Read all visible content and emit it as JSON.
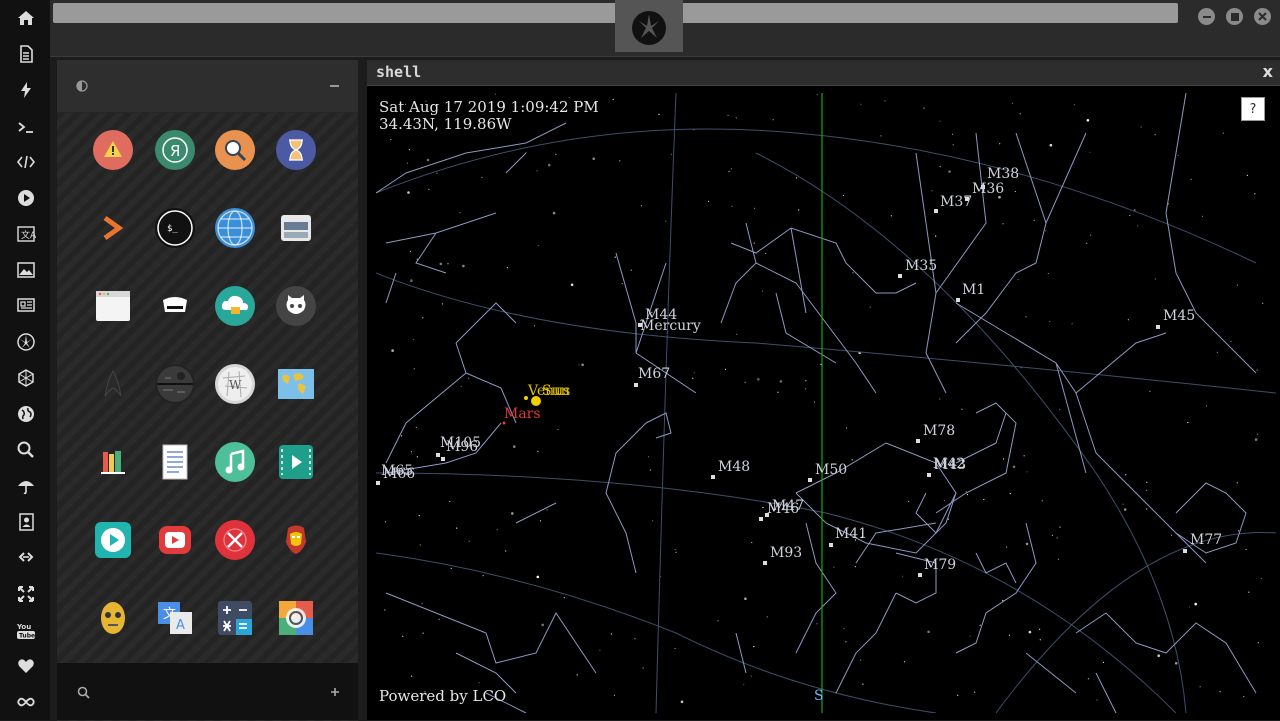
{
  "dock": {
    "items": [
      "home-icon",
      "document-icon",
      "bolt-icon",
      "terminal-icon",
      "code-icon",
      "play-icon",
      "translate-icon",
      "image-icon",
      "newspaper-icon",
      "rebel-icon",
      "hexagon-icon",
      "globe-icon",
      "search-icon",
      "umbrella-icon",
      "contact-icon",
      "link-icon",
      "expand-icon",
      "youtube-icon",
      "heart-icon",
      "infinity-icon"
    ]
  },
  "topbar": {
    "logo": "rebel-alliance-logo-icon"
  },
  "launcher": {
    "apps": [
      {
        "name": "warning-app-icon",
        "color": "#e06b5f"
      },
      {
        "name": "yandex-app-icon",
        "color": "#3a8a6e"
      },
      {
        "name": "search-app-icon",
        "color": "#e9914e"
      },
      {
        "name": "hourglass-app-icon",
        "color": "#4c5aa3"
      },
      {
        "name": "prompt-app-icon",
        "color": "#e8742d"
      },
      {
        "name": "shell-app-icon",
        "color": "#111111"
      },
      {
        "name": "browser-app-icon",
        "color": "#3b8ed8"
      },
      {
        "name": "storage-app-icon",
        "color": "#b8b8b8"
      },
      {
        "name": "window-app-icon",
        "color": "#e8e8e8"
      },
      {
        "name": "hacker-app-icon",
        "color": "#111111"
      },
      {
        "name": "cloud-lock-app-icon",
        "color": "#2aa79b"
      },
      {
        "name": "github-app-icon",
        "color": "#444444"
      },
      {
        "name": "star-trek-app-icon",
        "color": "#1c1c1c"
      },
      {
        "name": "death-star-app-icon",
        "color": "#222222"
      },
      {
        "name": "wikipedia-app-icon",
        "color": "#d6d6d6"
      },
      {
        "name": "world-map-app-icon",
        "color": "#5aa0d8"
      },
      {
        "name": "books-app-icon",
        "color": "#6ba7d9"
      },
      {
        "name": "notes-app-icon",
        "color": "#e6e6e6"
      },
      {
        "name": "music-app-icon",
        "color": "#4fbf9a"
      },
      {
        "name": "video-app-icon",
        "color": "#1f9e8a"
      },
      {
        "name": "player-app-icon",
        "color": "#22b5b0"
      },
      {
        "name": "youtube-app-icon",
        "color": "#e23b3b"
      },
      {
        "name": "close-app-icon",
        "color": "#e0323a"
      },
      {
        "name": "iron-man-app-icon",
        "color": "#b83a2a"
      },
      {
        "name": "c3po-app-icon",
        "color": "#e0b43a"
      },
      {
        "name": "translate-app-icon",
        "color": "#4a8ee6"
      },
      {
        "name": "calculator-app-icon",
        "color": "#3f4a63"
      },
      {
        "name": "photos-app-icon",
        "color": "#f2a93b"
      }
    ],
    "search_placeholder": ""
  },
  "shell": {
    "title": "shell",
    "close": "x",
    "help": "?",
    "datetime": "Sat Aug 17 2019 1:09:42 PM",
    "location": "34.43N, 119.86W",
    "footer": "Powered by LCO",
    "meridian_label": "S",
    "labels": {
      "M38": "M38",
      "M36": "M36",
      "M37": "M37",
      "M35": "M35",
      "M1": "M1",
      "M45": "M45",
      "M44": "M44",
      "Mercury": "Mercury",
      "M67": "M67",
      "Venus": "Venus",
      "Sun": "Sun",
      "Mars": "Mars",
      "M105": "M105",
      "M96": "M96",
      "M65": "M65",
      "M66": "M66",
      "M48": "M48",
      "M50": "M50",
      "M78": "M78",
      "M42": "M42",
      "M43": "M43",
      "M47": "M47",
      "M46": "M46",
      "M41": "M41",
      "M93": "M93",
      "M79": "M79",
      "M77": "M77"
    },
    "colors": {
      "mars": "#e03a3a",
      "sun": "#f0d000",
      "venus": "#f0d000",
      "meridian": "#14a814"
    }
  }
}
